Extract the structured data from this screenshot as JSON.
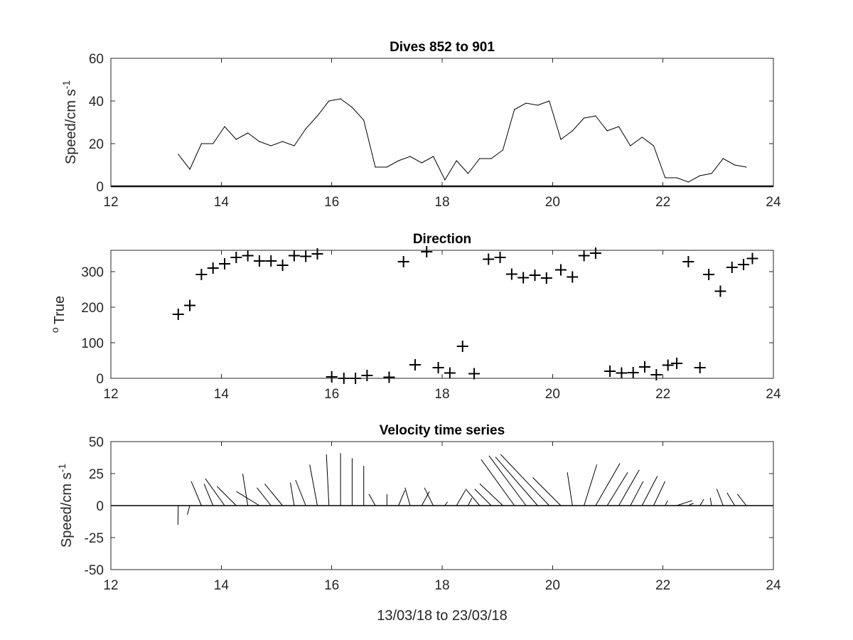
{
  "chart_data": [
    {
      "type": "line",
      "title": "Dives 852 to 901",
      "ylabel": "Speed/cm s",
      "ylabel_sup": "-1",
      "xlabel": "",
      "xlim": [
        12,
        24
      ],
      "ylim": [
        0,
        60
      ],
      "xticks": [
        "12",
        "14",
        "16",
        "18",
        "20",
        "22",
        "24"
      ],
      "yticks": [
        "0",
        "20",
        "40",
        "60"
      ],
      "x": [
        13.22,
        13.43,
        13.64,
        13.85,
        14.06,
        14.27,
        14.48,
        14.69,
        14.9,
        15.11,
        15.32,
        15.53,
        15.74,
        15.95,
        16.16,
        16.37,
        16.58,
        16.79,
        17.0,
        17.21,
        17.42,
        17.63,
        17.84,
        18.05,
        18.26,
        18.47,
        18.68,
        18.89,
        19.1,
        19.31,
        19.52,
        19.73,
        19.94,
        20.15,
        20.36,
        20.57,
        20.78,
        20.99,
        21.2,
        21.41,
        21.62,
        21.83,
        22.04,
        22.25,
        22.46,
        22.67,
        22.88,
        23.09,
        23.3,
        23.51
      ],
      "y": [
        15,
        8,
        20,
        20,
        28,
        22,
        25,
        21,
        19,
        21,
        19,
        27,
        33,
        40,
        41,
        37,
        31,
        9,
        9,
        12,
        14,
        11,
        14,
        3,
        12,
        6,
        13,
        13,
        17,
        36,
        39,
        38,
        40,
        22,
        26,
        32,
        33,
        26,
        28,
        19,
        23,
        19,
        4,
        4,
        2,
        5,
        6,
        13,
        10,
        9
      ]
    },
    {
      "type": "scatter",
      "title": "Direction",
      "ylabel": "True",
      "ylabel_sup": "o",
      "xlabel": "",
      "xlim": [
        12,
        24
      ],
      "ylim": [
        0,
        360
      ],
      "xticks": [
        "12",
        "14",
        "16",
        "18",
        "20",
        "22",
        "24"
      ],
      "yticks": [
        "0",
        "100",
        "200",
        "300"
      ],
      "marker": "+",
      "x": [
        13.22,
        13.43,
        13.64,
        13.85,
        14.06,
        14.27,
        14.48,
        14.69,
        14.9,
        15.11,
        15.32,
        15.53,
        15.74,
        16.0,
        16.22,
        16.43,
        16.64,
        17.04,
        17.3,
        17.51,
        17.72,
        17.93,
        18.14,
        18.37,
        18.58,
        18.84,
        19.05,
        19.26,
        19.47,
        19.68,
        19.89,
        20.15,
        20.36,
        20.57,
        20.78,
        21.04,
        21.25,
        21.46,
        21.67,
        21.88,
        22.09,
        22.25,
        22.46,
        22.67,
        22.83,
        23.04,
        23.25,
        23.46,
        23.62
      ],
      "y": [
        180,
        205,
        292,
        310,
        322,
        340,
        345,
        330,
        330,
        318,
        345,
        343,
        350,
        4,
        0,
        0,
        8,
        3,
        328,
        38,
        356,
        30,
        15,
        90,
        13,
        335,
        340,
        293,
        283,
        290,
        282,
        305,
        285,
        345,
        352,
        20,
        15,
        16,
        32,
        10,
        37,
        42,
        328,
        30,
        292,
        245,
        312,
        320,
        337
      ]
    },
    {
      "type": "quiver",
      "title": "Velocity time series",
      "ylabel": "Speed/cm s",
      "ylabel_sup": "-1",
      "xlabel": "13/03/18 to 23/03/18",
      "xlim": [
        12,
        24
      ],
      "ylim": [
        -50,
        50
      ],
      "xticks": [
        "12",
        "14",
        "16",
        "18",
        "20",
        "22",
        "24"
      ],
      "yticks": [
        "-50",
        "-25",
        "0",
        "25",
        "50"
      ],
      "x": [
        13.22,
        13.43,
        13.64,
        13.85,
        14.06,
        14.27,
        14.48,
        14.69,
        14.9,
        15.11,
        15.32,
        15.53,
        15.74,
        15.95,
        16.16,
        16.37,
        16.58,
        16.79,
        17.0,
        17.21,
        17.42,
        17.63,
        17.84,
        18.05,
        18.26,
        18.47,
        18.68,
        18.89,
        19.1,
        19.31,
        19.52,
        19.73,
        19.94,
        20.15,
        20.36,
        20.57,
        20.78,
        20.99,
        21.2,
        21.41,
        21.62,
        21.83,
        22.04,
        22.25,
        22.46,
        22.67,
        22.88,
        23.09,
        23.3,
        23.51
      ],
      "u": [
        -0.3,
        -2,
        -8,
        -7,
        -15,
        -15,
        -4,
        -18,
        -11,
        -14,
        -3,
        -8,
        -6,
        -2,
        0,
        0,
        0,
        -5,
        0,
        5,
        -4,
        6,
        -7,
        2,
        7,
        3,
        -11,
        -13,
        -18,
        -26,
        -29,
        -33,
        -38,
        -22,
        -4,
        10,
        19,
        16,
        16,
        10,
        12,
        9,
        2,
        12,
        4,
        3,
        -1,
        -5,
        -6,
        -7
      ],
      "v": [
        -15,
        -7,
        19,
        17,
        21,
        15,
        25,
        11,
        14,
        17,
        18,
        20,
        32,
        40,
        41,
        37,
        31,
        9,
        9,
        12,
        14,
        11,
        14,
        3,
        12,
        6,
        13,
        13,
        17,
        36,
        39,
        38,
        40,
        22,
        26,
        32,
        33,
        26,
        28,
        19,
        23,
        19,
        4,
        4,
        2,
        5,
        6,
        13,
        10,
        9
      ]
    }
  ]
}
